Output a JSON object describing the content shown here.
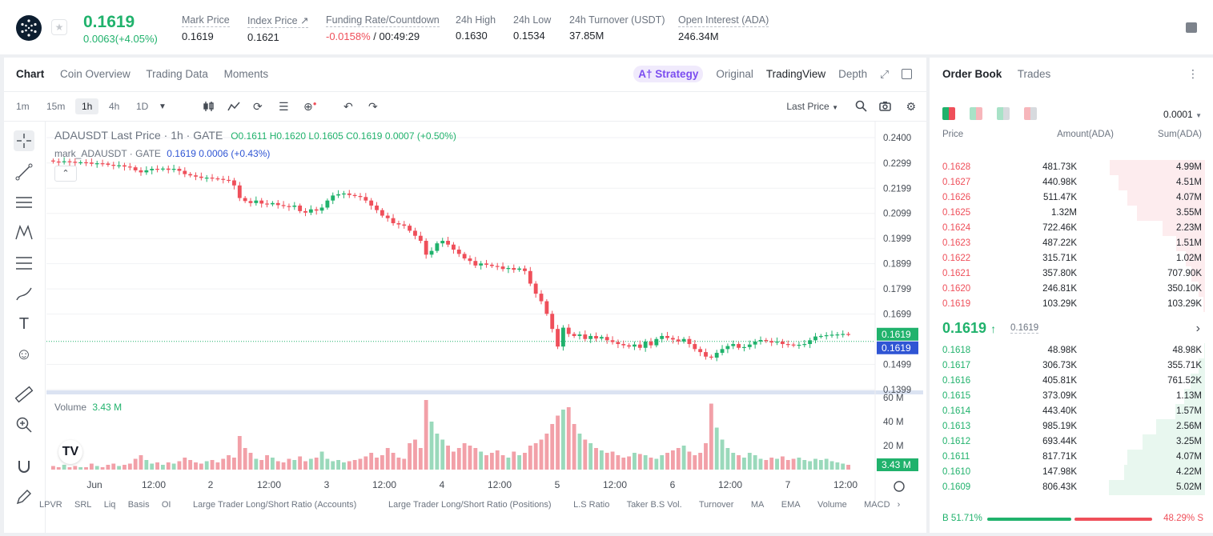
{
  "ticker": {
    "price": "0.1619",
    "change": "0.0063(+4.05%)",
    "stats": [
      {
        "label": "Mark Price",
        "value": "0.1619"
      },
      {
        "label": "Index Price ↗",
        "value": "0.1621"
      },
      {
        "label": "Funding Rate/Countdown",
        "value_red": "-0.0158%",
        "value": " / 00:49:29"
      },
      {
        "label": "24h High",
        "value": "0.1630"
      },
      {
        "label": "24h Low",
        "value": "0.1534"
      },
      {
        "label": "24h Turnover (USDT)",
        "value": "37.85M"
      },
      {
        "label": "Open Interest (ADA)",
        "value": "246.34M"
      }
    ]
  },
  "chart_tabs": [
    "Chart",
    "Coin Overview",
    "Trading Data",
    "Moments"
  ],
  "view_tabs": {
    "strategy": "A† Strategy",
    "original": "Original",
    "tradingview": "TradingView",
    "depth": "Depth"
  },
  "timeframes": [
    "1m",
    "15m",
    "1h",
    "4h",
    "1D"
  ],
  "last_price_select": "Last Price",
  "legend": {
    "symbol": "ADAUSDT Last Price · 1h · GATE",
    "ohlc": "O0.1611 H0.1620 L0.1605 C0.1619 0.0007 (+0.50%)",
    "mark_name": "mark_ADAUSDT · GATE",
    "mark_values": "0.1619  0.0006 (+0.43%)",
    "volume_label": "Volume",
    "volume_value": "3.43 M"
  },
  "price_axis": [
    "0.2400",
    "0.2299",
    "0.2199",
    "0.2099",
    "0.1999",
    "0.1899",
    "0.1799",
    "0.1699",
    "0.1499",
    "0.1399"
  ],
  "price_tags": {
    "last": "0.1619",
    "mark": "0.1619"
  },
  "volume_axis": [
    "60 M",
    "40 M",
    "20 M"
  ],
  "volume_tag": "3.43 M",
  "time_axis": [
    "Jun",
    "12:00",
    "2",
    "12:00",
    "3",
    "12:00",
    "4",
    "12:00",
    "5",
    "12:00",
    "6",
    "12:00",
    "7",
    "12:00"
  ],
  "indicators": [
    "LPVR",
    "SRL",
    "Liq",
    "Basis",
    "OI",
    "Large Trader Long/Short Ratio (Accounts)",
    "Large Trader Long/Short Ratio (Positions)",
    "L.S Ratio",
    "Taker B.S Vol.",
    "Turnover",
    "MA",
    "EMA",
    "Volume",
    "MACD"
  ],
  "chart_data": {
    "type": "candlestick",
    "price_range": [
      0.1399,
      0.24
    ],
    "volume_range": [
      0,
      60
    ],
    "closes": [
      0.2305,
      0.2303,
      0.2306,
      0.2304,
      0.23,
      0.2302,
      0.2301,
      0.2296,
      0.2298,
      0.2297,
      0.2292,
      0.2288,
      0.229,
      0.2285,
      0.2282,
      0.227,
      0.2262,
      0.227,
      0.2276,
      0.2274,
      0.2277,
      0.2272,
      0.2276,
      0.2268,
      0.2255,
      0.225,
      0.2245,
      0.224,
      0.2241,
      0.2238,
      0.2236,
      0.2232,
      0.223,
      0.221,
      0.216,
      0.2148,
      0.214,
      0.215,
      0.2138,
      0.2135,
      0.214,
      0.2132,
      0.2128,
      0.2125,
      0.213,
      0.2108,
      0.2102,
      0.2115,
      0.211,
      0.2122,
      0.215,
      0.217,
      0.2175,
      0.2178,
      0.2172,
      0.2168,
      0.2164,
      0.215,
      0.213,
      0.2112,
      0.209,
      0.208,
      0.206,
      0.2055,
      0.205,
      0.203,
      0.201,
      0.199,
      0.1935,
      0.195,
      0.198,
      0.199,
      0.1975,
      0.1955,
      0.1938,
      0.192,
      0.191,
      0.1892,
      0.19,
      0.1895,
      0.189,
      0.1888,
      0.1878,
      0.1882,
      0.1875,
      0.188,
      0.187,
      0.182,
      0.178,
      0.175,
      0.17,
      0.164,
      0.157,
      0.1645,
      0.162,
      0.1612,
      0.1618,
      0.16,
      0.1612,
      0.1602,
      0.1608,
      0.1595,
      0.1588,
      0.158,
      0.1575,
      0.157,
      0.1578,
      0.1565,
      0.159,
      0.1575,
      0.16,
      0.1612,
      0.1604,
      0.1598,
      0.159,
      0.16,
      0.158,
      0.156,
      0.1548,
      0.153,
      0.1526,
      0.1545,
      0.156,
      0.1572,
      0.158,
      0.1565,
      0.1568,
      0.1578,
      0.159,
      0.1596,
      0.1592,
      0.1586,
      0.159,
      0.158,
      0.1578,
      0.1575,
      0.1577,
      0.158,
      0.1595,
      0.161,
      0.1612,
      0.1615,
      0.1617,
      0.1618,
      0.162,
      0.1619
    ],
    "volumes": [
      3,
      2,
      4,
      2,
      3,
      2,
      2,
      5,
      3,
      2,
      4,
      5,
      3,
      4,
      5,
      9,
      12,
      8,
      5,
      6,
      4,
      6,
      5,
      7,
      10,
      8,
      6,
      5,
      7,
      8,
      6,
      9,
      12,
      10,
      28,
      18,
      14,
      9,
      8,
      12,
      10,
      7,
      6,
      9,
      8,
      11,
      7,
      9,
      10,
      15,
      9,
      7,
      8,
      6,
      7,
      8,
      9,
      11,
      14,
      10,
      12,
      18,
      14,
      10,
      9,
      22,
      25,
      18,
      58,
      40,
      30,
      25,
      20,
      15,
      18,
      22,
      20,
      18,
      15,
      12,
      14,
      16,
      12,
      10,
      15,
      12,
      14,
      20,
      22,
      25,
      30,
      38,
      45,
      50,
      52,
      38,
      30,
      25,
      22,
      18,
      16,
      14,
      15,
      12,
      10,
      11,
      14,
      13,
      12,
      10,
      9,
      12,
      14,
      16,
      18,
      20,
      15,
      12,
      14,
      22,
      55,
      35,
      25,
      18,
      14,
      12,
      10,
      14,
      12,
      9,
      8,
      10,
      9,
      11,
      8,
      9,
      10,
      8,
      7,
      9,
      8,
      9,
      7,
      6,
      5,
      4,
      3.43
    ]
  },
  "order_book": {
    "tabs": [
      "Order Book",
      "Trades"
    ],
    "precision": "0.0001",
    "headers": [
      "Price",
      "Amount(ADA)",
      "Sum(ADA)"
    ],
    "asks": [
      {
        "price": "0.1628",
        "amount": "481.73K",
        "sum": "4.99M",
        "depth": 0.99
      },
      {
        "price": "0.1627",
        "amount": "440.98K",
        "sum": "4.51M",
        "depth": 0.9
      },
      {
        "price": "0.1626",
        "amount": "511.47K",
        "sum": "4.07M",
        "depth": 0.81
      },
      {
        "price": "0.1625",
        "amount": "1.32M",
        "sum": "3.55M",
        "depth": 0.71
      },
      {
        "price": "0.1624",
        "amount": "722.46K",
        "sum": "2.23M",
        "depth": 0.44
      },
      {
        "price": "0.1623",
        "amount": "487.22K",
        "sum": "1.51M",
        "depth": 0.3
      },
      {
        "price": "0.1622",
        "amount": "315.71K",
        "sum": "1.02M",
        "depth": 0.2
      },
      {
        "price": "0.1621",
        "amount": "357.80K",
        "sum": "707.90K",
        "depth": 0.14
      },
      {
        "price": "0.1620",
        "amount": "246.81K",
        "sum": "350.10K",
        "depth": 0.07
      },
      {
        "price": "0.1619",
        "amount": "103.29K",
        "sum": "103.29K",
        "depth": 0.02
      }
    ],
    "mid": {
      "price": "0.1619",
      "arrow": "↑",
      "mark": "0.1619"
    },
    "bids": [
      {
        "price": "0.1618",
        "amount": "48.98K",
        "sum": "48.98K",
        "depth": 0.01
      },
      {
        "price": "0.1617",
        "amount": "306.73K",
        "sum": "355.71K",
        "depth": 0.07
      },
      {
        "price": "0.1616",
        "amount": "405.81K",
        "sum": "761.52K",
        "depth": 0.15
      },
      {
        "price": "0.1615",
        "amount": "373.09K",
        "sum": "1.13M",
        "depth": 0.22
      },
      {
        "price": "0.1614",
        "amount": "443.40K",
        "sum": "1.57M",
        "depth": 0.31
      },
      {
        "price": "0.1613",
        "amount": "985.19K",
        "sum": "2.56M",
        "depth": 0.51
      },
      {
        "price": "0.1612",
        "amount": "693.44K",
        "sum": "3.25M",
        "depth": 0.65
      },
      {
        "price": "0.1611",
        "amount": "817.71K",
        "sum": "4.07M",
        "depth": 0.81
      },
      {
        "price": "0.1610",
        "amount": "147.98K",
        "sum": "4.22M",
        "depth": 0.84
      },
      {
        "price": "0.1609",
        "amount": "806.43K",
        "sum": "5.02M",
        "depth": 1.0
      }
    ],
    "ratio": {
      "buy_label": "B",
      "buy": "51.71%",
      "buy_fraction": 0.5171,
      "sell": "48.29%",
      "sell_label": "S"
    }
  },
  "colors": {
    "up": "#20b26c",
    "down": "#ef4f5a",
    "accent": "#7b4df0",
    "mark_blue": "#2f55d4"
  }
}
